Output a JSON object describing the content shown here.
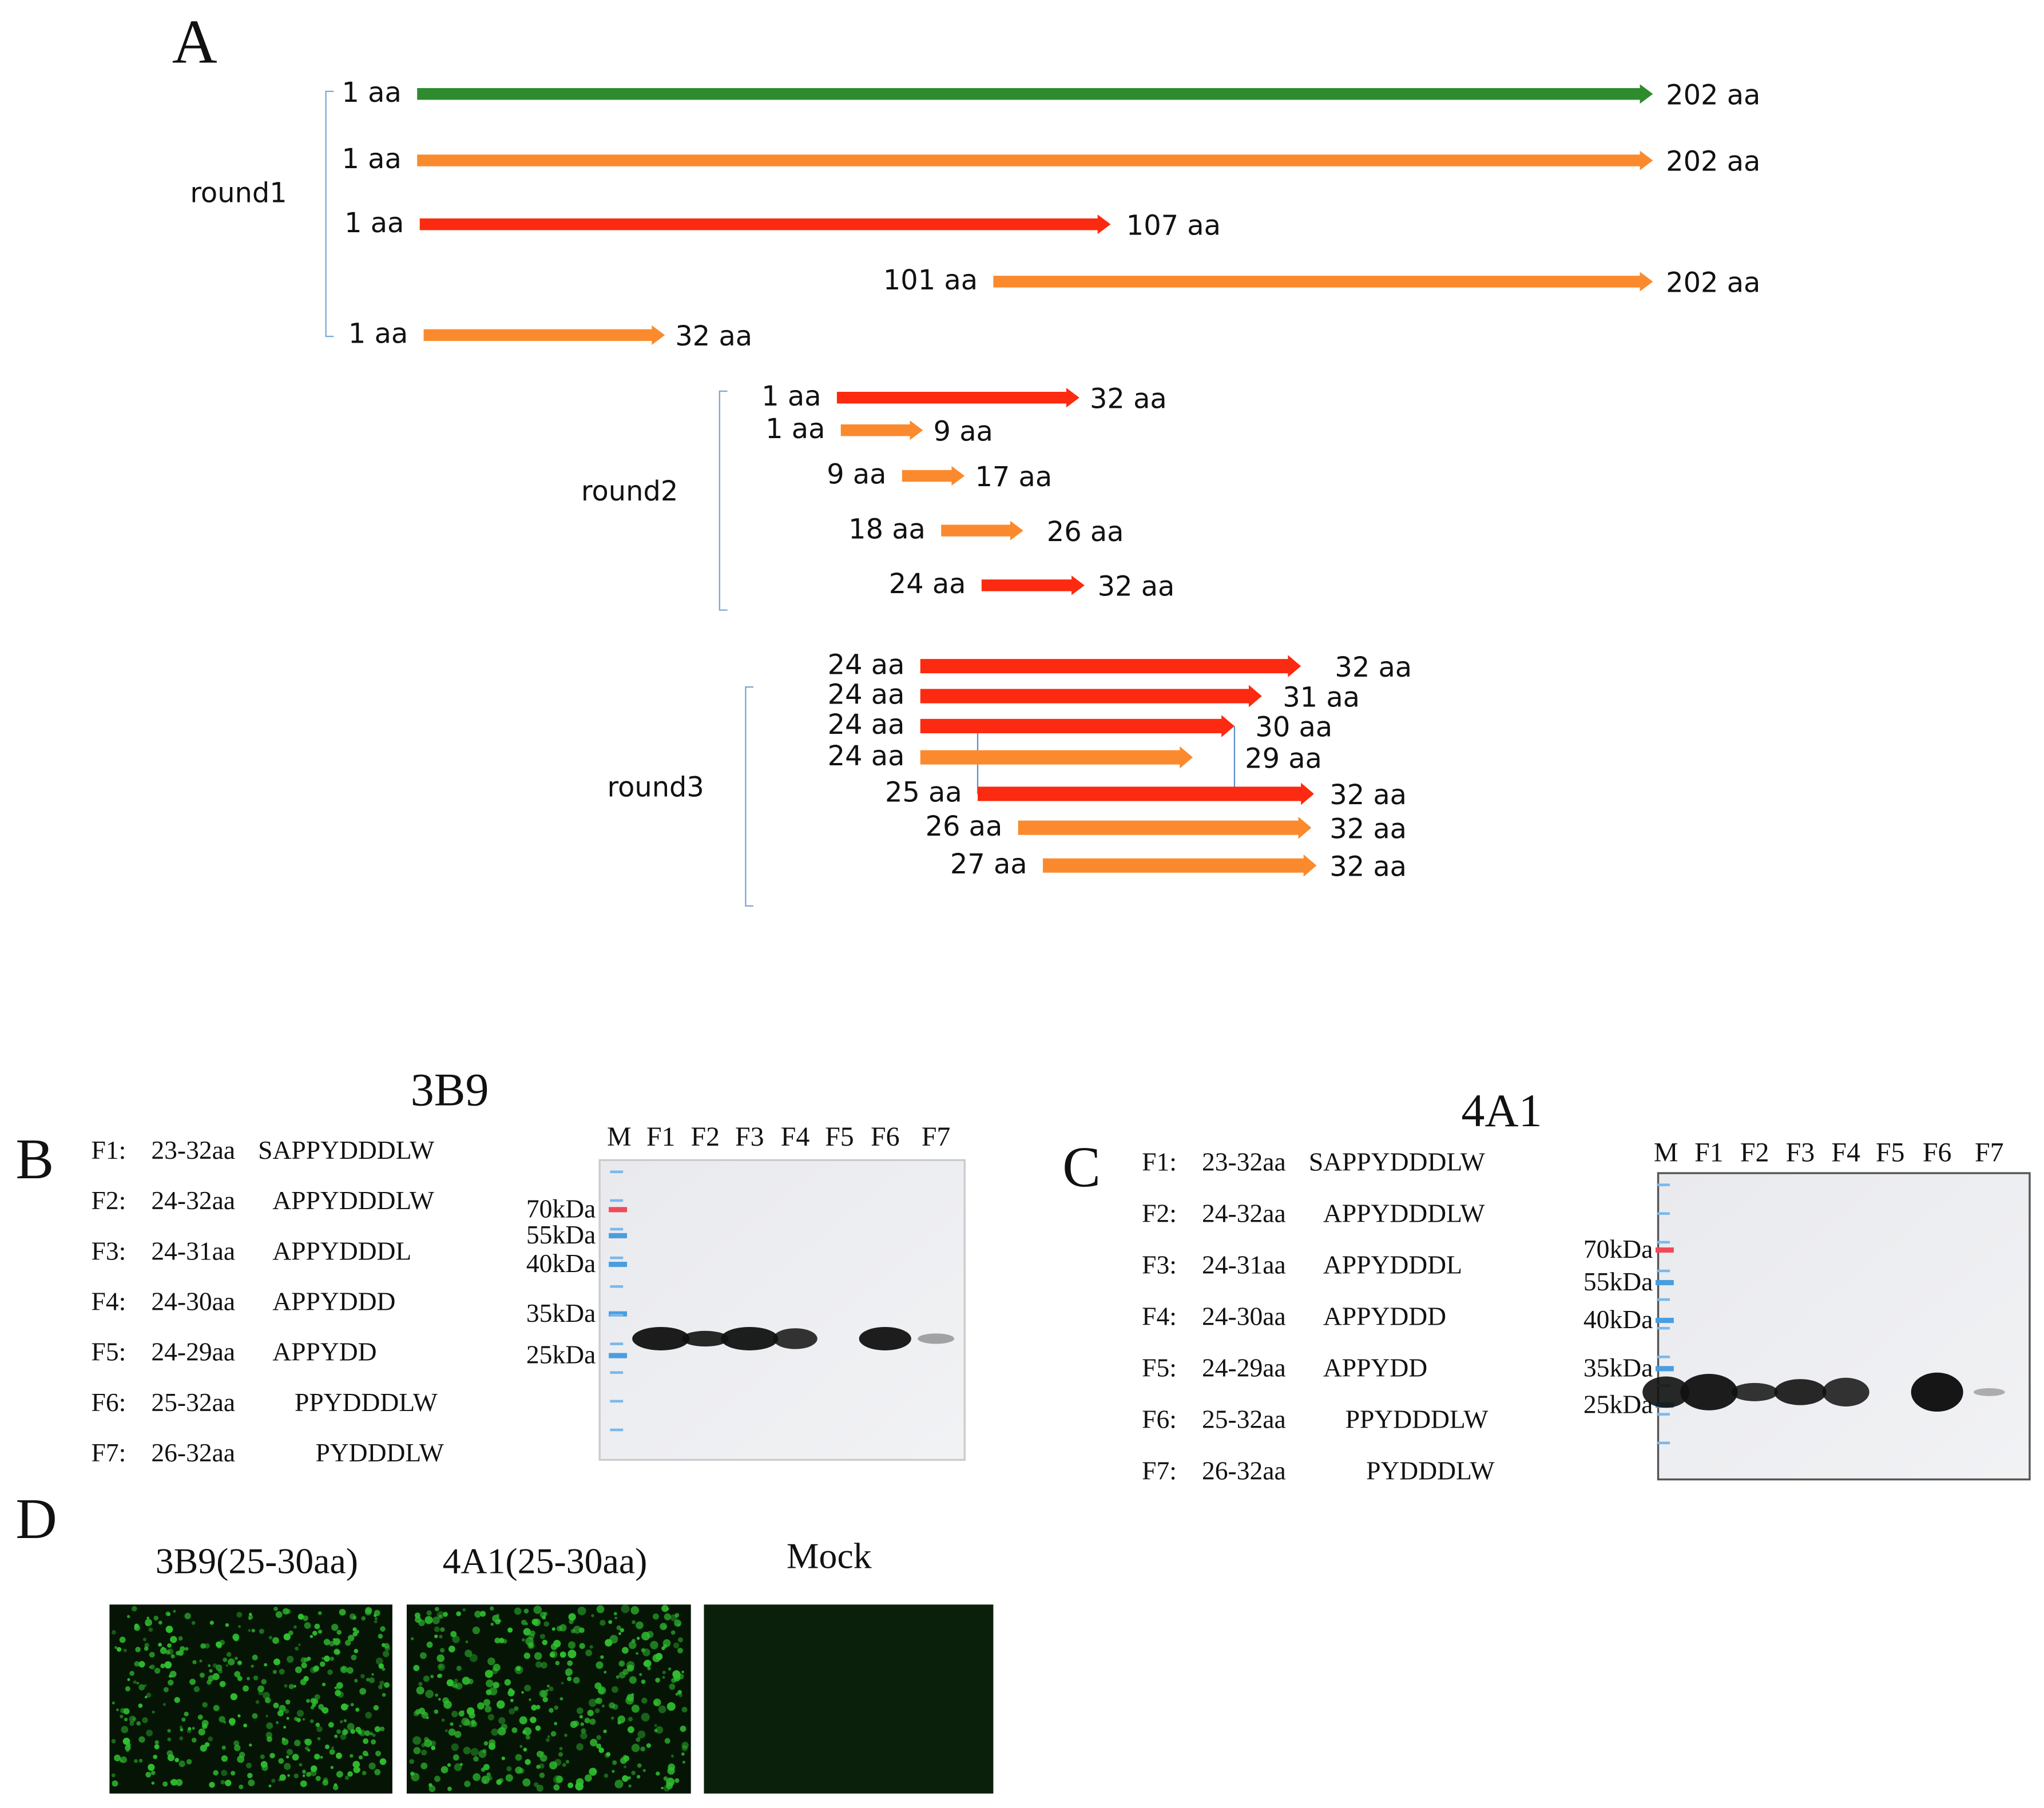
{
  "panel_a": {
    "label": "A",
    "groups": [
      {
        "name": "round1",
        "fragments": [
          {
            "start": "1 aa",
            "end": "202 aa"
          },
          {
            "start": "1 aa",
            "end": "202 aa"
          },
          {
            "start": "1 aa",
            "end": "107 aa"
          },
          {
            "start": "101 aa",
            "end": "202 aa"
          },
          {
            "start": "1 aa",
            "end": "32 aa"
          }
        ]
      },
      {
        "name": "round2",
        "fragments": [
          {
            "start": "1 aa",
            "end": "32 aa"
          },
          {
            "start": "1 aa",
            "end": "9 aa"
          },
          {
            "start": "9 aa",
            "end": "17 aa"
          },
          {
            "start": "18 aa",
            "end": "26 aa"
          },
          {
            "start": "24 aa",
            "end": "32 aa"
          }
        ]
      },
      {
        "name": "round3",
        "fragments": [
          {
            "start": "24 aa",
            "end": "32 aa"
          },
          {
            "start": "24 aa",
            "end": "31 aa"
          },
          {
            "start": "24 aa",
            "end": "30 aa"
          },
          {
            "start": "24 aa",
            "end": "29 aa"
          },
          {
            "start": "25 aa",
            "end": "32 aa"
          },
          {
            "start": "26 aa",
            "end": "32 aa"
          },
          {
            "start": "27 aa",
            "end": "32 aa"
          }
        ]
      }
    ]
  },
  "panel_b": {
    "label": "B",
    "antibody": "3B9",
    "fragments": [
      {
        "name": "F1:",
        "range": "23-32aa",
        "sequence": "SAPPYDDDLW"
      },
      {
        "name": "F2:",
        "range": "24-32aa",
        "sequence": "APPYDDDLW"
      },
      {
        "name": "F3:",
        "range": "24-31aa",
        "sequence": "APPYDDDL"
      },
      {
        "name": "F4:",
        "range": "24-30aa",
        "sequence": "APPYDDD"
      },
      {
        "name": "F5:",
        "range": "24-29aa",
        "sequence": "APPYDD"
      },
      {
        "name": "F6:",
        "range": "25-32aa",
        "sequence": "PPYDDDLW"
      },
      {
        "name": "F7:",
        "range": "26-32aa",
        "sequence": "PYDDDLW"
      }
    ],
    "lanes": [
      "M",
      "F1",
      "F2",
      "F3",
      "F4",
      "F5",
      "F6",
      "F7"
    ],
    "markers": [
      "70kDa",
      "55kDa",
      "40kDa",
      "35kDa",
      "25kDa"
    ]
  },
  "panel_c": {
    "label": "C",
    "antibody": "4A1",
    "fragments": [
      {
        "name": "F1:",
        "range": "23-32aa",
        "sequence": "SAPPYDDDLW"
      },
      {
        "name": "F2:",
        "range": "24-32aa",
        "sequence": "APPYDDDLW"
      },
      {
        "name": "F3:",
        "range": "24-31aa",
        "sequence": "APPYDDDL"
      },
      {
        "name": "F4:",
        "range": "24-30aa",
        "sequence": "APPYDDD"
      },
      {
        "name": "F5:",
        "range": "24-29aa",
        "sequence": "APPYDD"
      },
      {
        "name": "F6:",
        "range": "25-32aa",
        "sequence": "PPYDDDLW"
      },
      {
        "name": "F7:",
        "range": "26-32aa",
        "sequence": "PYDDDLW"
      }
    ],
    "lanes": [
      "M",
      "F1",
      "F2",
      "F3",
      "F4",
      "F5",
      "F6",
      "F7"
    ],
    "markers": [
      "70kDa",
      "55kDa",
      "40kDa",
      "35kDa",
      "25kDa"
    ]
  },
  "panel_d": {
    "label": "D",
    "images": [
      "3B9(25-30aa)",
      "4A1(25-30aa)",
      "Mock"
    ]
  }
}
